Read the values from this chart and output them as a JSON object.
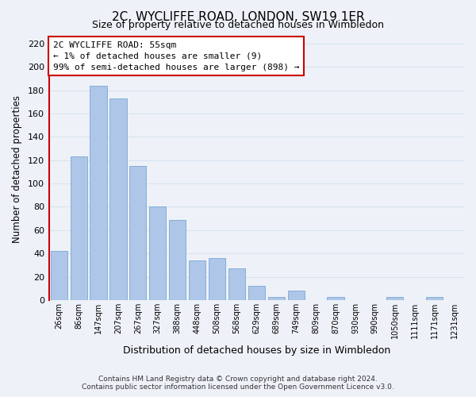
{
  "title": "2C, WYCLIFFE ROAD, LONDON, SW19 1ER",
  "subtitle": "Size of property relative to detached houses in Wimbledon",
  "xlabel": "Distribution of detached houses by size in Wimbledon",
  "ylabel": "Number of detached properties",
  "footer_line1": "Contains HM Land Registry data © Crown copyright and database right 2024.",
  "footer_line2": "Contains public sector information licensed under the Open Government Licence v3.0.",
  "bar_labels": [
    "26sqm",
    "86sqm",
    "147sqm",
    "207sqm",
    "267sqm",
    "327sqm",
    "388sqm",
    "448sqm",
    "508sqm",
    "568sqm",
    "629sqm",
    "689sqm",
    "749sqm",
    "809sqm",
    "870sqm",
    "930sqm",
    "990sqm",
    "1050sqm",
    "1111sqm",
    "1171sqm",
    "1231sqm"
  ],
  "bar_values": [
    42,
    123,
    184,
    173,
    115,
    80,
    69,
    34,
    36,
    27,
    12,
    3,
    8,
    0,
    3,
    0,
    0,
    3,
    0,
    3,
    0
  ],
  "bar_color": "#aec6e8",
  "bar_edge_color": "#7aa8d4",
  "ylim": [
    0,
    225
  ],
  "yticks": [
    0,
    20,
    40,
    60,
    80,
    100,
    120,
    140,
    160,
    180,
    200,
    220
  ],
  "annotation_title": "2C WYCLIFFE ROAD: 55sqm",
  "annotation_line1": "← 1% of detached houses are smaller (9)",
  "annotation_line2": "99% of semi-detached houses are larger (898) →",
  "annotation_box_color": "#ffffff",
  "annotation_box_edge": "#cc0000",
  "vline_color": "#cc0000",
  "grid_color": "#d8e4f0",
  "background_color": "#eef2f8"
}
